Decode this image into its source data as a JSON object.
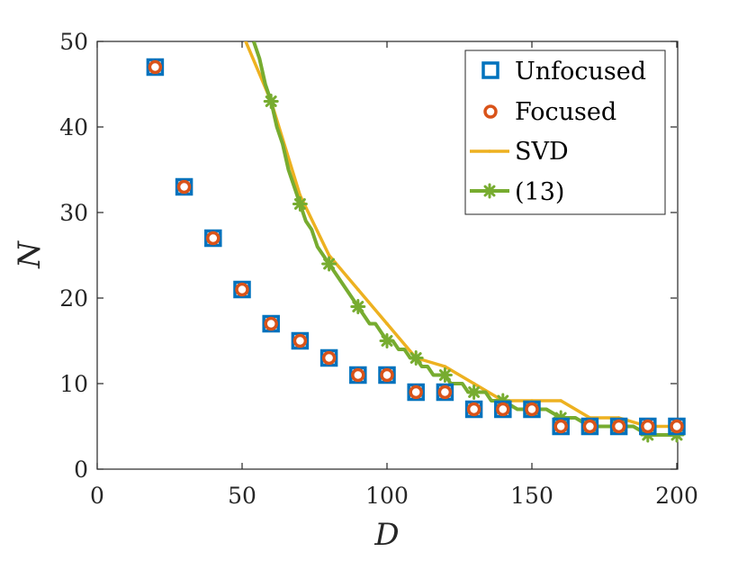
{
  "chart_data": {
    "type": "scatter",
    "title": "",
    "xlabel": "D",
    "ylabel": "N",
    "xlim": [
      0,
      200
    ],
    "ylim": [
      0,
      50
    ],
    "xticks": [
      0,
      50,
      100,
      150,
      200
    ],
    "yticks": [
      0,
      10,
      20,
      30,
      40,
      50
    ],
    "xtick_labels": [
      "0",
      "50",
      "100",
      "150",
      "200"
    ],
    "ytick_labels": [
      "0",
      "10",
      "20",
      "30",
      "40",
      "50"
    ],
    "grid": false,
    "legend_position": "top-right",
    "series": [
      {
        "name": "Unfocused",
        "kind": "marker-square",
        "color": "#0072BD",
        "x": [
          20,
          30,
          40,
          50,
          60,
          70,
          80,
          90,
          100,
          110,
          120,
          130,
          140,
          150,
          160,
          170,
          180,
          190,
          200
        ],
        "y": [
          47,
          33,
          27,
          21,
          17,
          15,
          13,
          11,
          11,
          9,
          9,
          7,
          7,
          7,
          5,
          5,
          5,
          5,
          5
        ]
      },
      {
        "name": "Focused",
        "kind": "marker-circle",
        "color": "#D95319",
        "x": [
          20,
          30,
          40,
          50,
          60,
          70,
          80,
          90,
          100,
          110,
          120,
          130,
          140,
          150,
          160,
          170,
          180,
          190,
          200
        ],
        "y": [
          47,
          33,
          27,
          21,
          17,
          15,
          13,
          11,
          11,
          9,
          9,
          7,
          7,
          7,
          5,
          5,
          5,
          5,
          5
        ]
      },
      {
        "name": "SVD",
        "kind": "line-dot",
        "color": "#EDB120",
        "x": [
          50,
          60,
          70,
          80,
          90,
          100,
          110,
          120,
          130,
          140,
          150,
          160,
          170,
          180,
          190,
          200
        ],
        "y": [
          51,
          43,
          32,
          25,
          21,
          17,
          13,
          12,
          10,
          8,
          8,
          8,
          6,
          6,
          5,
          5
        ]
      },
      {
        "name": "(13)",
        "kind": "line-star",
        "color": "#77AC30",
        "x": [
          54,
          56,
          58,
          60,
          62,
          64,
          66,
          68,
          70,
          72,
          74,
          76,
          78,
          80,
          82,
          84,
          86,
          88,
          90,
          92,
          94,
          96,
          98,
          100,
          102,
          104,
          106,
          108,
          110,
          112,
          114,
          116,
          118,
          120,
          122,
          124,
          126,
          128,
          130,
          132,
          134,
          136,
          138,
          140,
          145,
          150,
          155,
          160,
          165,
          170,
          175,
          180,
          185,
          190,
          195,
          200
        ],
        "y": [
          50,
          48,
          45,
          43,
          40,
          38,
          35,
          33,
          31,
          29,
          28,
          26,
          25,
          24,
          23,
          22,
          21,
          20,
          19,
          18,
          17,
          17,
          16,
          15,
          15,
          14,
          14,
          13,
          13,
          12,
          12,
          11,
          11,
          11,
          10,
          10,
          10,
          9,
          9,
          9,
          9,
          8,
          8,
          8,
          7,
          7,
          7,
          6,
          6,
          5,
          5,
          5,
          5,
          4,
          4,
          4
        ],
        "marker_x": [
          60,
          70,
          80,
          90,
          100,
          110,
          120,
          130,
          140,
          150,
          160,
          170,
          180,
          190,
          200
        ],
        "marker_y": [
          43,
          31,
          24,
          19,
          15,
          13,
          11,
          9,
          8,
          7,
          6,
          5,
          5,
          4,
          4
        ]
      }
    ]
  }
}
